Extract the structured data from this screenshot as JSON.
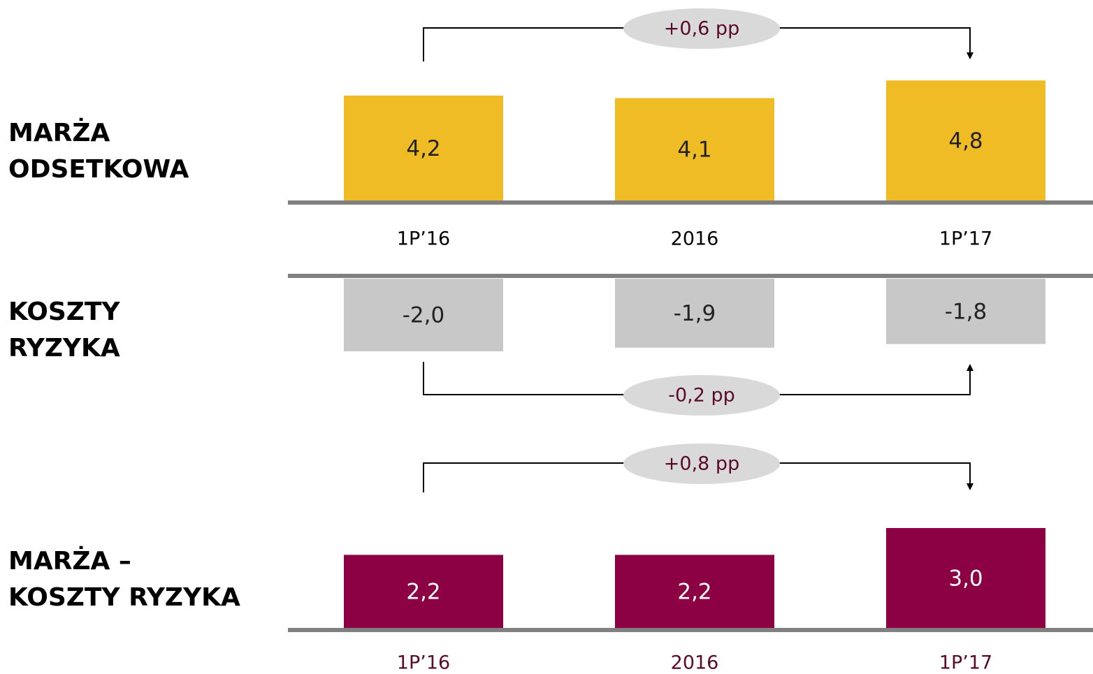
{
  "chart_data": [
    {
      "type": "bar",
      "title": [
        "MARŻA",
        "ODSETKOWA"
      ],
      "categories": [
        "1P’16",
        "2016",
        "1P’17"
      ],
      "values": [
        4.2,
        4.1,
        4.8
      ],
      "value_labels": [
        "4,2",
        "4,1",
        "4,8"
      ],
      "color": "#f0bc26",
      "annotation": "+0,6 pp"
    },
    {
      "type": "bar",
      "title": [
        "KOSZTY",
        "RYZYKA"
      ],
      "values": [
        -2.0,
        -1.9,
        -1.8
      ],
      "value_labels": [
        "-2,0",
        "-1,9",
        "-1,8"
      ],
      "color": "#c8c8c8",
      "annotation": "-0,2 pp"
    },
    {
      "type": "bar",
      "title": [
        "MARŻA –",
        "KOSZTY RYZYKA"
      ],
      "categories": [
        "1P’16",
        "2016",
        "1P’17"
      ],
      "values": [
        2.2,
        2.2,
        3.0
      ],
      "value_labels": [
        "2,2",
        "2,2",
        "3,0"
      ],
      "color": "#8c0044",
      "annotation": "+0,8 pp"
    }
  ]
}
